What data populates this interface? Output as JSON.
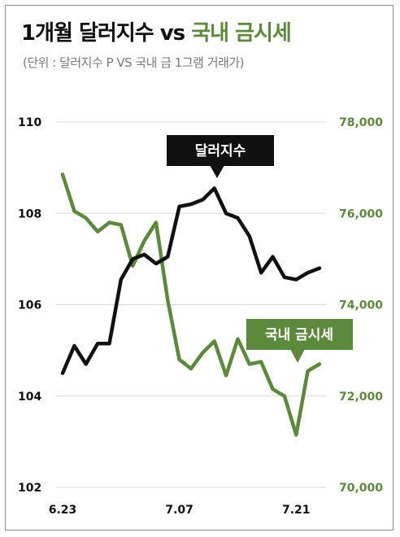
{
  "header": {
    "title_part1": "1개월 달러지수 vs ",
    "title_part2": "국내 금시세",
    "subtitle": "(단위 : 달러지수 P VS 국내 금 1그램 거래가)"
  },
  "colors": {
    "dollar": "#111111",
    "gold": "#5a8a3a",
    "grid": "#d9d9d9"
  },
  "chart_data": {
    "type": "line",
    "x_tick_labels": [
      "6.23",
      "7.07",
      "7.21"
    ],
    "x_tick_indices": [
      0,
      10,
      20
    ],
    "y_left": {
      "lim": [
        102,
        110
      ],
      "ticks": [
        "102",
        "104",
        "106",
        "108",
        "110"
      ],
      "tick_values": [
        102,
        104,
        106,
        108,
        110
      ]
    },
    "y_right": {
      "lim": [
        70000,
        78000
      ],
      "ticks": [
        "70,000",
        "72,000",
        "74,000",
        "76,000",
        "78,000"
      ],
      "tick_values": [
        70000,
        72000,
        74000,
        76000,
        78000
      ]
    },
    "grid": true,
    "series": [
      {
        "name": "달러지수",
        "axis": "left",
        "values": [
          104.5,
          105.1,
          104.7,
          105.15,
          105.15,
          106.55,
          107.0,
          107.1,
          106.9,
          107.05,
          108.15,
          108.2,
          108.3,
          108.55,
          108.0,
          107.9,
          107.5,
          106.7,
          107.05,
          106.6,
          106.55,
          106.7,
          106.8
        ]
      },
      {
        "name": "국내 금시세",
        "axis": "right",
        "values": [
          76.85,
          76.05,
          75.9,
          75.6,
          75.8,
          75.75,
          74.85,
          75.4,
          75.8,
          74.1,
          72.8,
          72.6,
          72.95,
          73.2,
          72.45,
          73.25,
          72.7,
          72.75,
          72.15,
          72.0,
          71.15,
          72.55,
          72.7
        ]
      }
    ]
  }
}
